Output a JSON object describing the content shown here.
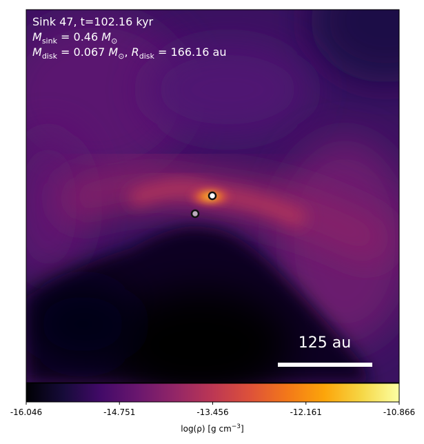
{
  "annotation": {
    "line1": "Sink 47, t=102.16 kyr",
    "line2": {
      "symbol": "M",
      "subscript": "sink",
      "equals": " = 0.46 ",
      "unit": "M",
      "unit_sub": "⊙"
    },
    "line3": {
      "symbol1": "M",
      "subscript1": "disk",
      "equals1": " = 0.067 ",
      "unit1": "M",
      "unit1_sub": "⊙",
      "separator": ", ",
      "symbol2": "R",
      "subscript2": "disk",
      "equals2": " = 166.16 au"
    }
  },
  "scalebar": {
    "label": "125 au",
    "length_au": 125
  },
  "colorbar": {
    "colormap": "inferno-like",
    "vmin": -16.046,
    "vmax": -10.866,
    "ticks": [
      "-16.046",
      "-14.751",
      "-13.456",
      "-12.161",
      "-10.866"
    ],
    "label_main": "log(ρ) [g cm",
    "label_exp": "−3",
    "label_end": "]"
  },
  "sinks": [
    {
      "name": "primary",
      "fill": "#ffffff",
      "edge": "#111111"
    },
    {
      "name": "secondary",
      "fill": "#bcaabd",
      "edge": "#111111"
    }
  ],
  "colors": {
    "background_dark": "#1c0a3c",
    "disk_hot": "#f57d15",
    "disk_core": "#fde164",
    "outflow_void": "#000004"
  }
}
